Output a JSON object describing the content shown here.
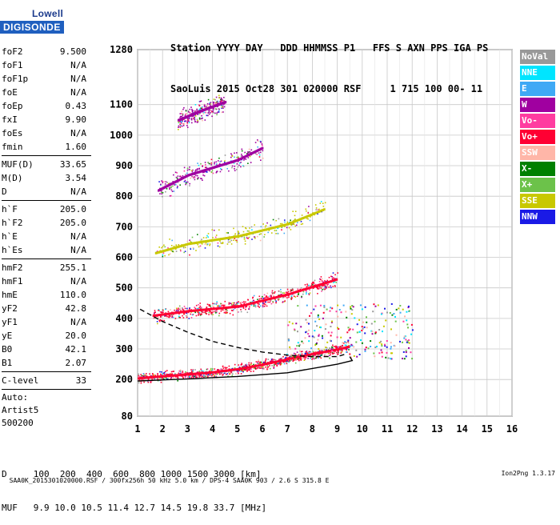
{
  "logo": {
    "line1": "Lowell",
    "line2": "DIGISONDE"
  },
  "header": {
    "line1": "Station YYYY DAY   DDD HHMMSS P1   FFS S AXN PPS IGA PS",
    "line2": "SaoLuis 2015 Oct28 301 020000 RSF     1 715 100 00- 11"
  },
  "params": [
    [
      {
        "k": "foF2",
        "v": "9.500"
      },
      {
        "k": "foF1",
        "v": "N/A"
      },
      {
        "k": "foF1p",
        "v": "N/A"
      },
      {
        "k": "foE",
        "v": "N/A"
      },
      {
        "k": "foEp",
        "v": "0.43"
      },
      {
        "k": "fxI",
        "v": "9.90"
      },
      {
        "k": "foEs",
        "v": "N/A"
      },
      {
        "k": "fmin",
        "v": "1.60"
      }
    ],
    [
      {
        "k": "MUF(D)",
        "v": "33.65"
      },
      {
        "k": "M(D)",
        "v": "3.54"
      },
      {
        "k": "D",
        "v": "N/A"
      }
    ],
    [
      {
        "k": "h`F",
        "v": "205.0"
      },
      {
        "k": "h`F2",
        "v": "205.0"
      },
      {
        "k": "h`E",
        "v": "N/A"
      },
      {
        "k": "h`Es",
        "v": "N/A"
      }
    ],
    [
      {
        "k": "hmF2",
        "v": "255.1"
      },
      {
        "k": "hmF1",
        "v": "N/A"
      },
      {
        "k": "hmE",
        "v": "110.0"
      },
      {
        "k": "yF2",
        "v": "42.8"
      },
      {
        "k": "yF1",
        "v": "N/A"
      },
      {
        "k": "yE",
        "v": "20.0"
      },
      {
        "k": "B0",
        "v": "42.1"
      },
      {
        "k": "B1",
        "v": "2.07"
      }
    ],
    [
      {
        "k": "C-level",
        "v": "33"
      }
    ]
  ],
  "auto": {
    "line1": "Auto:",
    "line2": "Artist5",
    "line3": "500200"
  },
  "legend": [
    {
      "label": "NoVal",
      "color": "#999999"
    },
    {
      "label": "NNE",
      "color": "#00e5ff"
    },
    {
      "label": "E",
      "color": "#3fa9f5"
    },
    {
      "label": "W",
      "color": "#a000a0"
    },
    {
      "label": "Vo-",
      "color": "#ff3ca0"
    },
    {
      "label": "Vo+",
      "color": "#ff0033"
    },
    {
      "label": "SSW",
      "color": "#ffb6a8"
    },
    {
      "label": "X-",
      "color": "#008000"
    },
    {
      "label": "X+",
      "color": "#6cc24a"
    },
    {
      "label": "SSE",
      "color": "#c8c800"
    },
    {
      "label": "NNW",
      "color": "#1a1ae6"
    }
  ],
  "dtable": {
    "line1": "D     100  200  400  600  800 1000 1500 3000 [km]",
    "line2": "MUF   9.9 10.0 10.5 11.4 12.7 14.5 19.8 33.7 [MHz]"
  },
  "footer": {
    "left": "SAA0K_2015301020000.RSF / 300fx256h 50 kHz 5.0 km / DPS-4 SAA0K 903 / 2.6 S 315.8 E",
    "right": "Ion2Png 1.3.17"
  },
  "chart_data": {
    "type": "scatter",
    "x_ticks": [
      1,
      2,
      3,
      4,
      5,
      6,
      7,
      8,
      9,
      10,
      11,
      12,
      13,
      14,
      15,
      16
    ],
    "xlim": [
      1,
      16
    ],
    "y_ticks": [
      80,
      200,
      300,
      400,
      500,
      600,
      700,
      800,
      900,
      1000,
      1100,
      1280
    ],
    "ylim": [
      80,
      1280
    ],
    "grid": true,
    "traces": [
      {
        "name": "O-trace",
        "color": "#ff0033",
        "x": [
          1.0,
          2,
          3,
          4,
          5,
          6,
          7,
          8,
          9,
          9.5
        ],
        "y": [
          205,
          212,
          218,
          225,
          235,
          250,
          268,
          285,
          300,
          310
        ]
      },
      {
        "name": "O-trace 2nd hop",
        "color": "#ff0033",
        "x": [
          1.6,
          3,
          5,
          7,
          9
        ],
        "y": [
          410,
          425,
          440,
          480,
          530
        ]
      },
      {
        "name": "3rd hop",
        "color": "#c8c800",
        "x": [
          1.7,
          3,
          5,
          7,
          8.5
        ],
        "y": [
          615,
          645,
          670,
          710,
          760
        ]
      },
      {
        "name": "4th hop",
        "color": "#a000a0",
        "x": [
          1.8,
          3,
          5,
          6
        ],
        "y": [
          820,
          870,
          920,
          960
        ]
      },
      {
        "name": "5th hop",
        "color": "#a000a0",
        "x": [
          2.6,
          3.5,
          4.5
        ],
        "y": [
          1050,
          1080,
          1110
        ]
      }
    ],
    "model_solid": {
      "x": [
        1,
        3,
        5,
        7,
        9,
        9.6,
        9.5
      ],
      "y": [
        195,
        202,
        210,
        222,
        250,
        262,
        275
      ]
    },
    "model_dashed": {
      "x": [
        1.1,
        2,
        3,
        4,
        5,
        6,
        7,
        8,
        9,
        9.4
      ],
      "y": [
        430,
        390,
        355,
        325,
        305,
        290,
        280,
        275,
        275,
        285
      ]
    }
  }
}
